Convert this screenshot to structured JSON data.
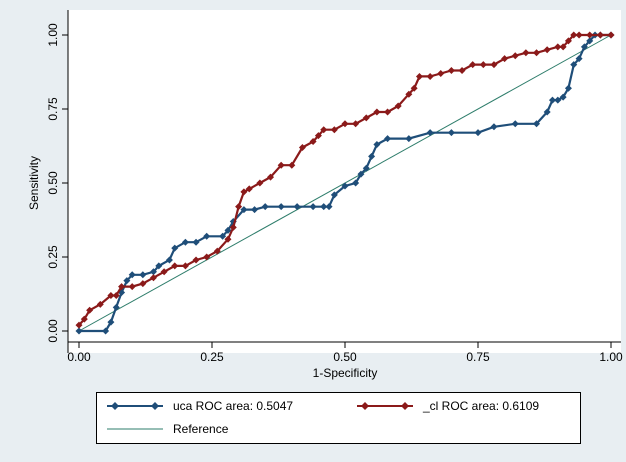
{
  "chart_data": {
    "type": "line",
    "xlabel": "1-Specificity",
    "ylabel": "Sensitivity",
    "xlim": [
      0,
      1
    ],
    "ylim": [
      0,
      1
    ],
    "xticks": [
      "0.00",
      "0.25",
      "0.50",
      "0.75",
      "1.00"
    ],
    "yticks": [
      "0.00",
      "0.25",
      "0.50",
      "0.75",
      "1.00"
    ],
    "grid": false,
    "legend_position": "bottom",
    "series": [
      {
        "name": "uca ROC area: 0.5047",
        "color": "#1f4e79",
        "marker": "diamond",
        "x": [
          0.0,
          0.05,
          0.06,
          0.07,
          0.08,
          0.09,
          0.1,
          0.12,
          0.14,
          0.15,
          0.17,
          0.18,
          0.2,
          0.22,
          0.24,
          0.27,
          0.28,
          0.29,
          0.31,
          0.33,
          0.35,
          0.38,
          0.41,
          0.44,
          0.46,
          0.47,
          0.48,
          0.5,
          0.52,
          0.53,
          0.54,
          0.55,
          0.56,
          0.58,
          0.62,
          0.66,
          0.7,
          0.75,
          0.78,
          0.82,
          0.86,
          0.88,
          0.89,
          0.9,
          0.91,
          0.92,
          0.93,
          0.94,
          0.95,
          0.96,
          0.97,
          0.98,
          1.0
        ],
        "y": [
          0.0,
          0.0,
          0.03,
          0.08,
          0.13,
          0.17,
          0.19,
          0.19,
          0.2,
          0.22,
          0.24,
          0.28,
          0.3,
          0.3,
          0.32,
          0.32,
          0.34,
          0.37,
          0.41,
          0.41,
          0.42,
          0.42,
          0.42,
          0.42,
          0.42,
          0.42,
          0.46,
          0.49,
          0.5,
          0.53,
          0.55,
          0.59,
          0.63,
          0.65,
          0.65,
          0.67,
          0.67,
          0.67,
          0.69,
          0.7,
          0.7,
          0.74,
          0.78,
          0.78,
          0.79,
          0.82,
          0.9,
          0.92,
          0.96,
          0.98,
          1.0,
          1.0,
          1.0
        ]
      },
      {
        "name": "_cl ROC area: 0.6109",
        "color": "#8b1a1a",
        "marker": "diamond",
        "x": [
          0.0,
          0.01,
          0.02,
          0.04,
          0.06,
          0.07,
          0.08,
          0.1,
          0.12,
          0.14,
          0.16,
          0.18,
          0.2,
          0.22,
          0.24,
          0.26,
          0.28,
          0.29,
          0.3,
          0.31,
          0.32,
          0.34,
          0.36,
          0.38,
          0.4,
          0.42,
          0.44,
          0.45,
          0.46,
          0.48,
          0.5,
          0.52,
          0.54,
          0.56,
          0.58,
          0.6,
          0.62,
          0.63,
          0.64,
          0.66,
          0.68,
          0.7,
          0.72,
          0.74,
          0.76,
          0.78,
          0.8,
          0.82,
          0.84,
          0.86,
          0.88,
          0.9,
          0.91,
          0.92,
          0.93,
          0.94,
          0.96,
          0.98,
          1.0
        ],
        "y": [
          0.02,
          0.04,
          0.07,
          0.09,
          0.12,
          0.12,
          0.15,
          0.15,
          0.16,
          0.18,
          0.2,
          0.22,
          0.22,
          0.24,
          0.25,
          0.27,
          0.31,
          0.35,
          0.42,
          0.47,
          0.48,
          0.5,
          0.52,
          0.56,
          0.56,
          0.62,
          0.64,
          0.66,
          0.68,
          0.68,
          0.7,
          0.7,
          0.72,
          0.74,
          0.74,
          0.76,
          0.8,
          0.82,
          0.86,
          0.86,
          0.87,
          0.88,
          0.88,
          0.9,
          0.9,
          0.9,
          0.92,
          0.93,
          0.94,
          0.94,
          0.95,
          0.96,
          0.96,
          0.98,
          1.0,
          1.0,
          1.0,
          1.0,
          1.0
        ]
      },
      {
        "name": "Reference",
        "color": "#2e7d6b",
        "marker": "none",
        "x": [
          0,
          1
        ],
        "y": [
          0,
          1
        ]
      }
    ]
  }
}
